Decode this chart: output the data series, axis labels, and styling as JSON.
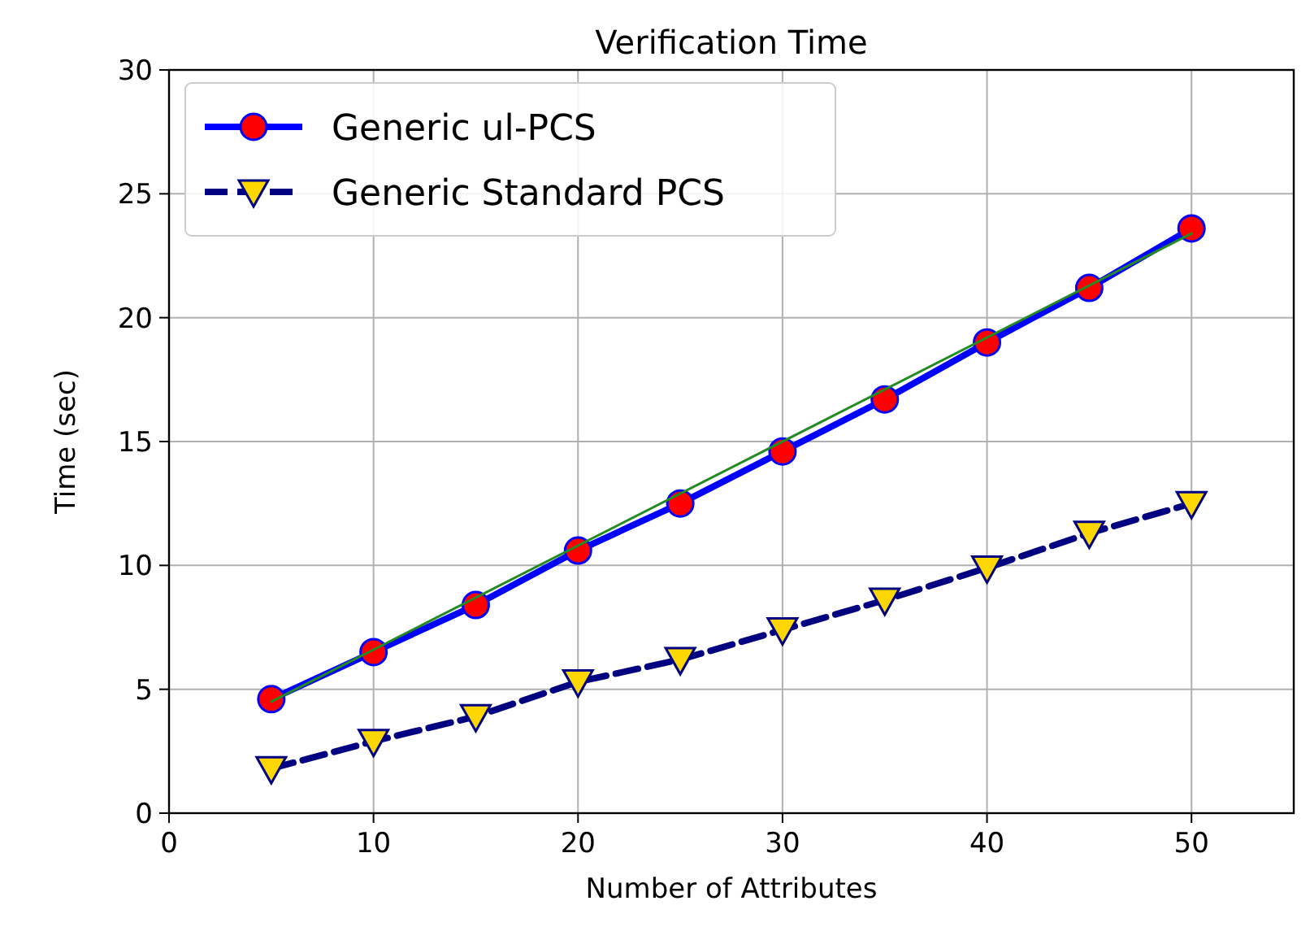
{
  "chart_data": {
    "type": "line",
    "title": "Verification Time",
    "xlabel": "Number of Attributes",
    "ylabel": "Time (sec)",
    "x": [
      5,
      10,
      15,
      20,
      25,
      30,
      35,
      40,
      45,
      50
    ],
    "series": [
      {
        "name": "Generic ul-PCS",
        "color": "#0000ff",
        "marker": "circle",
        "line_style": "solid",
        "values": [
          4.6,
          6.5,
          8.4,
          10.6,
          12.5,
          14.6,
          16.7,
          19.0,
          21.2,
          23.6
        ]
      },
      {
        "name": "Generic Standard PCS",
        "color": "#000080",
        "marker": "triangle",
        "line_style": "dashed",
        "values": [
          1.8,
          2.9,
          3.9,
          5.3,
          6.2,
          7.4,
          8.6,
          9.9,
          11.3,
          12.5
        ]
      },
      {
        "color": "#228b22",
        "marker": "none",
        "line_style": "solid",
        "x": [
          5,
          50
        ],
        "values": [
          4.5,
          23.4
        ]
      }
    ],
    "xlim": [
      0,
      55
    ],
    "xticks": [
      0,
      10,
      20,
      30,
      40,
      50
    ],
    "ylim": [
      0,
      30
    ],
    "yticks": [
      0,
      5,
      10,
      15,
      20,
      25,
      30
    ],
    "grid": true,
    "legend": "top left"
  }
}
